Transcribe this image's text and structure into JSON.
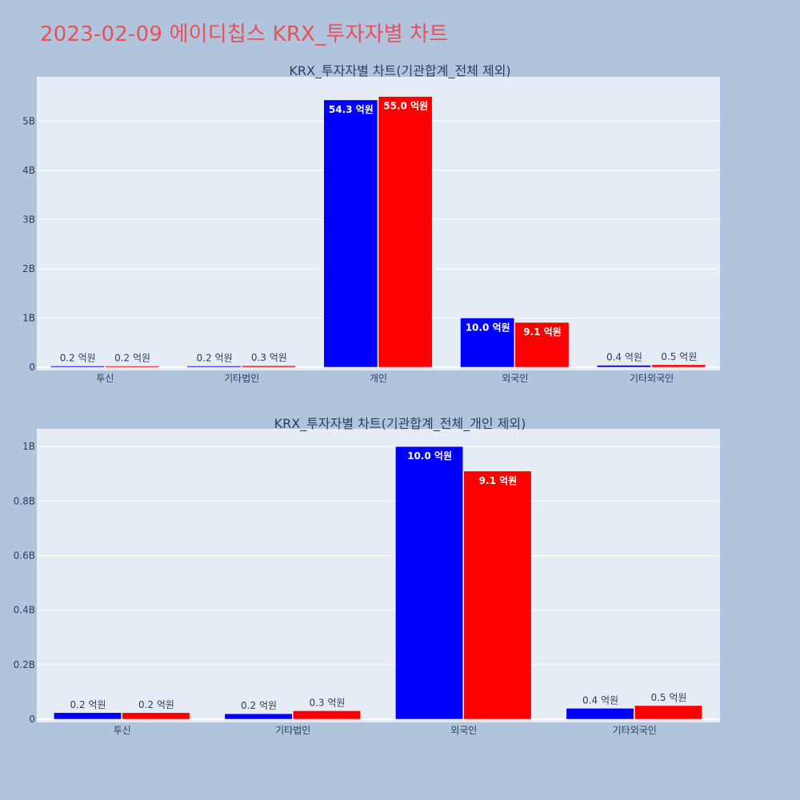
{
  "page_title": "2023-02-09 에이디칩스 KRX_투자자별 차트",
  "colors": {
    "background": "#b0c4de",
    "plot_bg": "#e5ecf6",
    "title": "#e8505b",
    "series_buy": "#0000ff",
    "series_sell": "#ff0000"
  },
  "chart_data": [
    {
      "type": "bar",
      "title": "KRX_투자자별 차트(기관합계_전체 제외)",
      "categories": [
        "투신",
        "기타법인",
        "개인",
        "외국인",
        "기타외국인"
      ],
      "series": [
        {
          "color": "#0000ff",
          "values": [
            24000000,
            20000000,
            5430000000,
            1000000000,
            40000000
          ],
          "labels": [
            "0.2 억원",
            "0.2 억원",
            "54.3 억원",
            "10.0 억원",
            "0.4 억원"
          ]
        },
        {
          "color": "#ff0000",
          "values": [
            24000000,
            31000000,
            5500000000,
            910000000,
            50000000
          ],
          "labels": [
            "0.2 억원",
            "0.3 억원",
            "55.0 억원",
            "9.1 억원",
            "0.5 억원"
          ]
        }
      ],
      "ylim": [
        0,
        5900000000
      ],
      "yticks": [
        0,
        1000000000,
        2000000000,
        3000000000,
        4000000000,
        5000000000
      ],
      "ytick_labels": [
        "0",
        "1B",
        "2B",
        "3B",
        "4B",
        "5B"
      ]
    },
    {
      "type": "bar",
      "title": "KRX_투자자별 차트(기관합계_전체_개인 제외)",
      "categories": [
        "투신",
        "기타법인",
        "외국인",
        "기타외국인"
      ],
      "series": [
        {
          "color": "#0000ff",
          "values": [
            24000000,
            20000000,
            1000000000,
            40000000
          ],
          "labels": [
            "0.2 억원",
            "0.2 억원",
            "10.0 억원",
            "0.4 억원"
          ]
        },
        {
          "color": "#ff0000",
          "values": [
            24000000,
            31000000,
            910000000,
            50000000
          ],
          "labels": [
            "0.2 억원",
            "0.3 억원",
            "9.1 억원",
            "0.5 억원"
          ]
        }
      ],
      "ylim": [
        0,
        1065000000
      ],
      "yticks": [
        0,
        200000000,
        400000000,
        600000000,
        800000000,
        1000000000
      ],
      "ytick_labels": [
        "0",
        "0.2B",
        "0.4B",
        "0.6B",
        "0.8B",
        "1B"
      ]
    }
  ]
}
